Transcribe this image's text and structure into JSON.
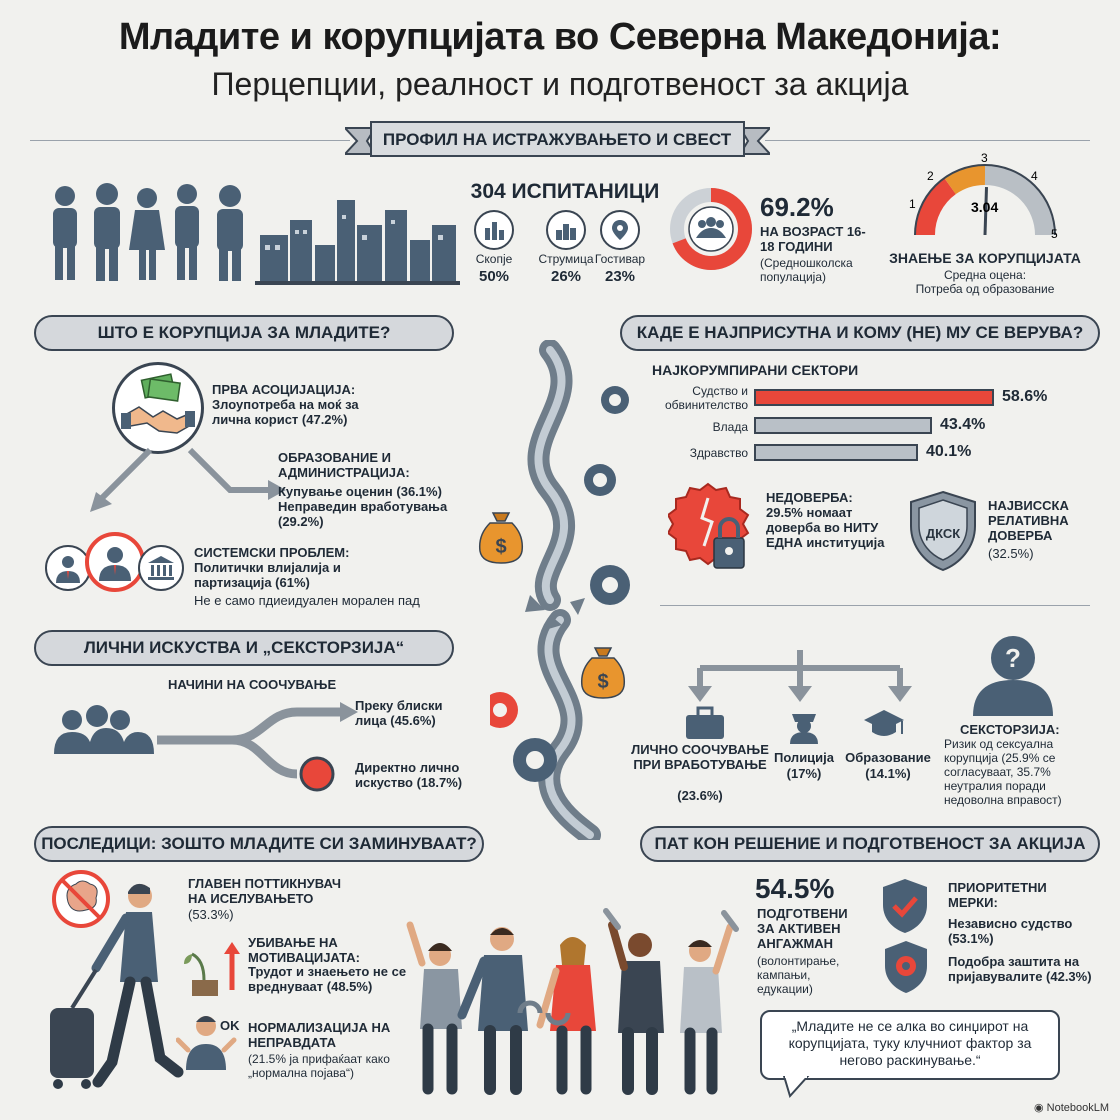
{
  "header": {
    "title": "Младите и корупцијата во Северна Македонија:",
    "subtitle": "Перцепции, реалност и подготвеност за акција"
  },
  "profile": {
    "ribbon": "ПРОФИЛ НА ИСТРАЖУВАЊЕТО И СВЕСТ",
    "respondents": "304 ИСПИТАНИЦИ",
    "cities": [
      {
        "name": "Скопје",
        "pct": "50%"
      },
      {
        "name": "Струмица",
        "pct": "26%"
      },
      {
        "name": "Гостивар",
        "pct": "23%"
      }
    ],
    "age_pct": "69.2%",
    "age_value": 69.2,
    "age_label": "НА ВОЗРАСТ 16-18 ГОДИНИ",
    "age_note": "(Средношколска популација)",
    "gauge": {
      "ticks": [
        "1",
        "2",
        "3",
        "4",
        "5"
      ],
      "value_label": "3.04",
      "value": 3.04,
      "title": "ЗНАЕЊЕ ЗА КОРУПЦИЈАТА",
      "note1": "Средна оцена:",
      "note2": "Потреба од образование"
    }
  },
  "what": {
    "ribbon": "ШТО Е КОРУПЦИЈА ЗА МЛАДИТЕ?",
    "first_title": "ПРВА АСОЦИЈАЦИЈА:",
    "first_text": "Злоупотреба на моќ за лична корист (47.2%)",
    "edu_title": "ОБРАЗОВАНИЕ И АДМИНИСТРАЦИЈА:",
    "edu_text1": "Купување оценин (36.1%)",
    "edu_text2": "Неправедин вработувања (29.2%)",
    "sys_title": "СИСТЕМСКИ ПРОБЛЕМ:",
    "sys_text": "Политички влијалија и партизација (61%)",
    "sys_note": "Не е само пдиеидуален морален пад"
  },
  "where": {
    "ribbon": "КАДЕ Е НАЈПРИСУТНА И КОМУ (НЕ) МУ СЕ ВЕРУВА?",
    "sectors_title": "НАЈКОРУМПИРАНИ СЕКТОРИ",
    "sectors": [
      {
        "label": "Судство и обвинителство",
        "value": 58.6,
        "display": "58.6%"
      },
      {
        "label": "Влада",
        "value": 43.4,
        "display": "43.4%"
      },
      {
        "label": "Здравство",
        "value": 40.1,
        "display": "40.1%"
      }
    ],
    "distrust_title": "НЕДОВЕРБА:",
    "distrust_text": "29.5% номаат доверба во НИТУ ЕДНА институција",
    "trust_title": "НАЈВИССКА РЕЛАТИВНА ДОВЕРБА",
    "trust_text": "(32.5%)",
    "shield_label": "ДКСК"
  },
  "personal": {
    "ribbon": "ЛИЧНИ ИСКУСТВА И „СЕКСТОРЗИЈА“",
    "ways_title": "НАЧИНИ НА СООЧУВАЊЕ",
    "way1": "Преку блиски лица (45.6%)",
    "way2": "Директно лично искуство (18.7%)",
    "personal_label": "ЛИЧНО СООЧУВАЊЕ ПРИ ВРАБОТУВАЊЕ",
    "personal_pct": "(23.6%)",
    "police_label": "Полиција",
    "police_pct": "(17%)",
    "edu_label": "Образование",
    "edu_pct": "(14.1%)",
    "sextortion_title": "СЕКСТОРЗИЈА:",
    "sextortion_text": "Ризик од сексуална корупција (25.9% се согласуваат, 35.7% неутралия поради недоволна вправост)"
  },
  "consequences": {
    "ribbon": "ПОСЛЕДИЦИ: ЗОШТО МЛАДИТЕ СИ ЗАМИНУВААТ?",
    "emig_title": "ГЛАВЕН ПОТТИКНУВАЧ НА ИСЕЛУВАЊЕТО",
    "emig_pct": "(53.3%)",
    "motiv_title": "УБИВАЊЕ НА МОТИВАЦИЈАТА:",
    "motiv_text": "Трудот и знаењето не се вреднуваат (48.5%)",
    "norm_title": "НОРМАЛИЗАЦИЈА НА НЕПРАВДАТА",
    "norm_text": "(21.5% ја прифаќаат како „нормална појава“)",
    "ok_label": "OK"
  },
  "solution": {
    "ribbon": "ПАТ КОН РЕШЕНИЕ И ПОДГОТВЕНОСТ ЗА АКЦИЈА",
    "ready_pct": "54.5%",
    "ready_label": "ПОДГОТВЕНИ ЗА АКТИВЕН АНГАЖМАН",
    "ready_note": "(волонтирање, кампањи, едукации)",
    "prio_title": "ПРИОРИТЕТНИ МЕРКИ:",
    "prio1": "Независно судство (53.1%)",
    "prio2": "Подобра заштита на пријавувалите (42.3%)",
    "quote": "„Младите не се алка во синџирот на корупцијата, туку клучниот фактор за негово раскинување.“"
  },
  "footer": {
    "brand": "NotebookLM"
  },
  "colors": {
    "accent": "#e8473a",
    "navy": "#3a4552",
    "slate": "#4a6075",
    "orange": "#e8952e"
  }
}
